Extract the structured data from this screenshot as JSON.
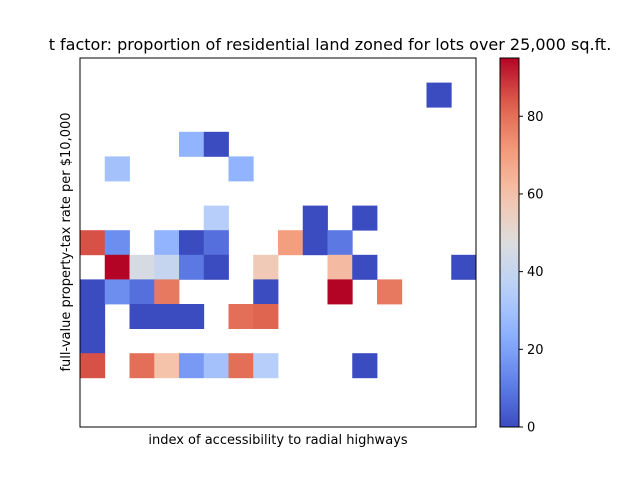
{
  "chart_data": {
    "type": "heatmap",
    "title": "t factor: proportion of residential land zoned for lots over 25,000 sq.ft.",
    "xlabel": "index of accessibility to radial highways",
    "ylabel": "full-value property-tax rate per $10,000",
    "x_ticks_shown": false,
    "y_ticks_shown": false,
    "grid": false,
    "n_cols": 16,
    "n_rows": 15,
    "rows_order": "top-to-bottom",
    "cells": [
      [
        null,
        null,
        null,
        null,
        null,
        null,
        null,
        null,
        null,
        null,
        null,
        null,
        null,
        null,
        null,
        null
      ],
      [
        null,
        null,
        null,
        null,
        null,
        null,
        null,
        null,
        null,
        null,
        null,
        null,
        null,
        null,
        0,
        null
      ],
      [
        null,
        null,
        null,
        null,
        null,
        null,
        null,
        null,
        null,
        null,
        null,
        null,
        null,
        null,
        null,
        null
      ],
      [
        null,
        null,
        null,
        null,
        25,
        0,
        null,
        null,
        null,
        null,
        null,
        null,
        null,
        null,
        null,
        null
      ],
      [
        null,
        30,
        null,
        null,
        null,
        null,
        25,
        null,
        null,
        null,
        null,
        null,
        null,
        null,
        null,
        null
      ],
      [
        null,
        null,
        null,
        null,
        null,
        null,
        null,
        null,
        null,
        null,
        null,
        null,
        null,
        null,
        null,
        null
      ],
      [
        null,
        null,
        null,
        null,
        null,
        35,
        null,
        null,
        null,
        0,
        null,
        0,
        null,
        null,
        null,
        null
      ],
      [
        85,
        15,
        null,
        25,
        0,
        8,
        null,
        null,
        70,
        0,
        10,
        null,
        null,
        null,
        null,
        null
      ],
      [
        null,
        95,
        45,
        40,
        10,
        0,
        null,
        57,
        null,
        null,
        62,
        0,
        null,
        null,
        null,
        0
      ],
      [
        0,
        15,
        8,
        78,
        null,
        null,
        null,
        0,
        null,
        null,
        95,
        null,
        78,
        null,
        null,
        null
      ],
      [
        0,
        null,
        0,
        0,
        0,
        null,
        80,
        82,
        null,
        null,
        null,
        null,
        null,
        null,
        null,
        null
      ],
      [
        0,
        null,
        null,
        null,
        null,
        null,
        null,
        null,
        null,
        null,
        null,
        null,
        null,
        null,
        null,
        null
      ],
      [
        85,
        null,
        80,
        60,
        18,
        30,
        80,
        35,
        null,
        null,
        null,
        0,
        null,
        null,
        null,
        null
      ],
      [
        null,
        null,
        null,
        null,
        null,
        null,
        null,
        null,
        null,
        null,
        null,
        null,
        null,
        null,
        null,
        null
      ],
      [
        null,
        null,
        null,
        null,
        null,
        null,
        null,
        null,
        null,
        null,
        null,
        null,
        null,
        null,
        null,
        null
      ]
    ],
    "colorbar": {
      "colormap": "coolwarm",
      "min": 0,
      "max": 95,
      "ticks": [
        "0",
        "20",
        "40",
        "60",
        "80"
      ],
      "tick_values": [
        0,
        20,
        40,
        60,
        80
      ]
    }
  }
}
